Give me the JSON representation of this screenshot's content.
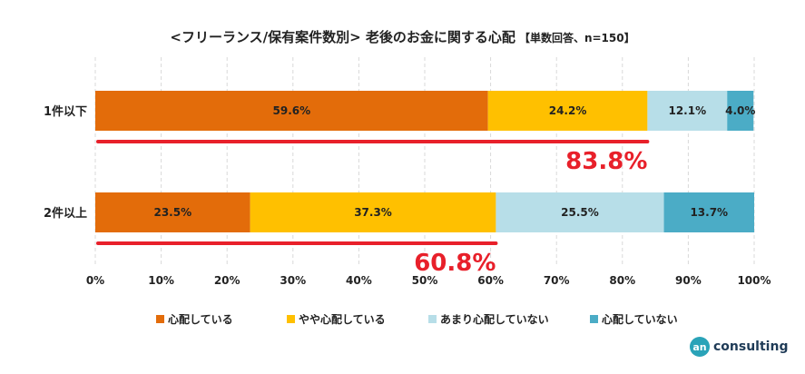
{
  "title": {
    "main": "<フリーランス/保有案件数別> 老後のお金に関する心配",
    "sub": "【単数回答、n=150】"
  },
  "chart_data": {
    "type": "bar",
    "orientation": "horizontal",
    "stacked": true,
    "categories": [
      "1件以下",
      "2件以上"
    ],
    "series": [
      {
        "name": "心配している",
        "values": [
          59.6,
          23.5
        ],
        "color": "#e36c0a",
        "labels": [
          "59.6%",
          "23.5%"
        ]
      },
      {
        "name": "やや心配している",
        "values": [
          24.2,
          37.3
        ],
        "color": "#ffc000",
        "labels": [
          "24.2%",
          "37.3%"
        ]
      },
      {
        "name": "あまり心配していない",
        "values": [
          12.1,
          25.5
        ],
        "color": "#b7dee8",
        "labels": [
          "12.1%",
          "25.5%"
        ]
      },
      {
        "name": "心配していない",
        "values": [
          4.0,
          13.7
        ],
        "color": "#4bacc6",
        "labels": [
          "4.0%",
          "13.7%"
        ]
      }
    ],
    "annotations": [
      {
        "category": "1件以下",
        "value": 83.8,
        "label": "83.8%"
      },
      {
        "category": "2件以上",
        "value": 60.8,
        "label": "60.8%"
      }
    ],
    "xlim": [
      0,
      100
    ],
    "xticks": [
      "0%",
      "10%",
      "20%",
      "30%",
      "40%",
      "50%",
      "60%",
      "70%",
      "80%",
      "90%",
      "100%"
    ],
    "grid": true,
    "legend": "bottom",
    "annotation_color": "#e8202a"
  },
  "brand": {
    "mark": "an",
    "text": "consulting"
  }
}
